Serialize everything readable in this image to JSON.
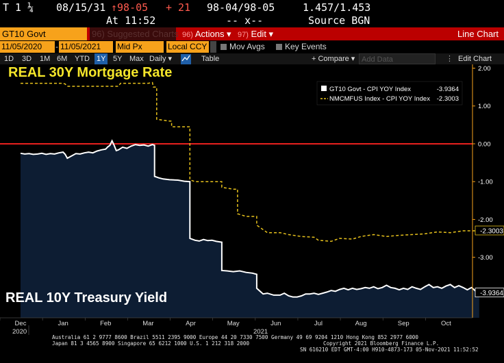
{
  "ticker": {
    "line1": {
      "code": "T 1 ¼",
      "maturity": "08/15/31",
      "price": "↑98-05",
      "change": "+ 21",
      "bid_ask": "98-04/98-05",
      "yields": "1.457/1.453"
    },
    "line2": {
      "time": "At 11:52",
      "dashes": "-- x--",
      "source": "Source BGN"
    }
  },
  "toolbar": {
    "security": "GT10 Govt",
    "suggested_num": "96)",
    "suggested_label": "Suggested Charts",
    "actions_num": "96)",
    "actions_label": "Actions ▾",
    "edit_num": "97)",
    "edit_label": "Edit ▾",
    "chart_type": "Line Chart"
  },
  "options": {
    "start_date": "11/05/2020",
    "end_date": "11/05/2021",
    "price_field": "Mid Px",
    "currency": "Local CCY",
    "mov_avgs": "Mov Avgs",
    "key_events": "Key Events"
  },
  "ranges": {
    "items": [
      "1D",
      "3D",
      "1M",
      "6M",
      "YTD",
      "1Y",
      "5Y",
      "Max"
    ],
    "active": "1Y",
    "frequency": "Daily ▾",
    "table": "Table",
    "compare": "+ Compare ▾",
    "add_data_placeholder": "Add Data",
    "edit_chart": "Edit Chart"
  },
  "colors": {
    "background": "#000000",
    "bloomberg_amber": "#f7a21b",
    "zero_line": "#e8201e",
    "area_fill": "#0d1d33",
    "series_white": "#ffffff",
    "series_yellow": "#e8c21c"
  },
  "chart_data": {
    "type": "line",
    "annotations": {
      "top": "REAL 30Y Mortgage Rate",
      "bottom": "REAL 10Y Treasury Yield"
    },
    "x_labels": [
      "Dec",
      "Jan",
      "Feb",
      "Mar",
      "Apr",
      "May",
      "Jun",
      "Jul",
      "Aug",
      "Sep",
      "Oct"
    ],
    "year_labels": [
      "2020",
      "2021"
    ],
    "ylim": [
      -4.6,
      2.1
    ],
    "y_ticks": [
      2.0,
      1.0,
      0.0,
      -1.0,
      -2.0,
      -3.0
    ],
    "y_tick_labels": [
      "2.00",
      "1.00",
      "0.00",
      "-1.00",
      "-2.00",
      "-3.00"
    ],
    "reference_line": 0,
    "series": [
      {
        "name": "GT10 Govt - CPI YOY Index",
        "legend_value": "-3.9364",
        "last_label": "-3.9364",
        "style": "solid-area",
        "points": [
          [
            0,
            -0.25
          ],
          [
            0.1,
            -0.27
          ],
          [
            0.2,
            -0.26
          ],
          [
            0.3,
            -0.28
          ],
          [
            0.4,
            -0.27
          ],
          [
            0.5,
            -0.25
          ],
          [
            0.6,
            -0.28
          ],
          [
            0.7,
            -0.26
          ],
          [
            0.8,
            -0.27
          ],
          [
            0.9,
            -0.24
          ],
          [
            1.0,
            -0.22
          ],
          [
            1.05,
            -0.28
          ],
          [
            1.1,
            -0.38
          ],
          [
            1.2,
            -0.32
          ],
          [
            1.3,
            -0.26
          ],
          [
            1.4,
            -0.27
          ],
          [
            1.5,
            -0.24
          ],
          [
            1.6,
            -0.22
          ],
          [
            1.7,
            -0.24
          ],
          [
            1.8,
            -0.19
          ],
          [
            1.9,
            -0.16
          ],
          [
            2.0,
            -0.14
          ],
          [
            2.05,
            -0.08
          ],
          [
            2.1,
            -0.04
          ],
          [
            2.15,
            0.08
          ],
          [
            2.2,
            -0.04
          ],
          [
            2.25,
            -0.18
          ],
          [
            2.3,
            -0.16
          ],
          [
            2.4,
            -0.09
          ],
          [
            2.5,
            -0.12
          ],
          [
            2.6,
            -0.06
          ],
          [
            2.7,
            -0.02
          ],
          [
            2.8,
            -0.04
          ],
          [
            2.9,
            -0.03
          ],
          [
            3.0,
            -0.06
          ],
          [
            3.1,
            -0.02
          ],
          [
            3.15,
            -0.04
          ],
          [
            3.15,
            -0.86
          ],
          [
            3.25,
            -0.9
          ],
          [
            3.35,
            -0.93
          ],
          [
            3.5,
            -0.95
          ],
          [
            3.7,
            -0.96
          ],
          [
            3.85,
            -0.99
          ],
          [
            3.98,
            -1.0
          ],
          [
            3.98,
            -2.5
          ],
          [
            4.1,
            -2.55
          ],
          [
            4.2,
            -2.57
          ],
          [
            4.3,
            -2.53
          ],
          [
            4.4,
            -2.56
          ],
          [
            4.5,
            -2.55
          ],
          [
            4.6,
            -2.58
          ],
          [
            4.73,
            -2.6
          ],
          [
            4.73,
            -3.35
          ],
          [
            4.85,
            -3.36
          ],
          [
            5.0,
            -3.38
          ],
          [
            5.15,
            -3.36
          ],
          [
            5.3,
            -3.4
          ],
          [
            5.45,
            -3.42
          ],
          [
            5.55,
            -3.45
          ],
          [
            5.55,
            -3.82
          ],
          [
            5.7,
            -3.97
          ],
          [
            5.8,
            -3.95
          ],
          [
            5.95,
            -4.0
          ],
          [
            6.1,
            -4.0
          ],
          [
            6.2,
            -3.95
          ],
          [
            6.3,
            -4.02
          ],
          [
            6.4,
            -4.05
          ],
          [
            6.5,
            -4.05
          ],
          [
            6.6,
            -4.02
          ],
          [
            6.7,
            -3.97
          ],
          [
            6.8,
            -3.97
          ],
          [
            6.9,
            -3.95
          ],
          [
            7.0,
            -3.98
          ],
          [
            7.1,
            -3.95
          ],
          [
            7.2,
            -3.92
          ],
          [
            7.3,
            -3.88
          ],
          [
            7.4,
            -3.9
          ],
          [
            7.5,
            -3.85
          ],
          [
            7.6,
            -3.82
          ],
          [
            7.7,
            -3.86
          ],
          [
            7.8,
            -3.82
          ],
          [
            7.9,
            -3.85
          ],
          [
            8.0,
            -3.83
          ],
          [
            8.1,
            -3.8
          ],
          [
            8.2,
            -3.82
          ],
          [
            8.3,
            -3.78
          ],
          [
            8.4,
            -3.83
          ],
          [
            8.5,
            -3.8
          ],
          [
            8.6,
            -3.74
          ],
          [
            8.7,
            -3.8
          ],
          [
            8.8,
            -3.82
          ],
          [
            8.9,
            -3.86
          ],
          [
            9.0,
            -3.82
          ],
          [
            9.1,
            -3.85
          ],
          [
            9.2,
            -3.78
          ],
          [
            9.3,
            -3.82
          ],
          [
            9.4,
            -3.85
          ],
          [
            9.5,
            -3.78
          ],
          [
            9.6,
            -3.72
          ],
          [
            9.7,
            -3.8
          ],
          [
            9.8,
            -3.78
          ],
          [
            9.9,
            -3.82
          ],
          [
            10.0,
            -3.76
          ],
          [
            10.1,
            -3.72
          ],
          [
            10.2,
            -3.8
          ],
          [
            10.3,
            -3.75
          ],
          [
            10.4,
            -3.8
          ],
          [
            10.5,
            -3.86
          ],
          [
            10.6,
            -3.8
          ],
          [
            10.7,
            -3.9
          ],
          [
            10.78,
            -3.94
          ]
        ]
      },
      {
        "name": "NMCMFUS Index - CPI YOY Index",
        "legend_value": "-2.3003",
        "last_label": "-2.3003",
        "style": "dashed",
        "points": [
          [
            0,
            1.6
          ],
          [
            1.0,
            1.6
          ],
          [
            1.05,
            1.58
          ],
          [
            1.1,
            1.52
          ],
          [
            2.3,
            1.52
          ],
          [
            2.35,
            1.6
          ],
          [
            3.0,
            1.6
          ],
          [
            3.1,
            1.62
          ],
          [
            3.12,
            1.5
          ],
          [
            3.2,
            1.5
          ],
          [
            3.2,
            0.65
          ],
          [
            3.5,
            0.6
          ],
          [
            3.55,
            0.6
          ],
          [
            3.55,
            0.45
          ],
          [
            3.98,
            0.45
          ],
          [
            3.98,
            -0.95
          ],
          [
            4.1,
            -1.0
          ],
          [
            4.73,
            -1.0
          ],
          [
            4.73,
            -1.15
          ],
          [
            5.0,
            -1.2
          ],
          [
            5.1,
            -1.2
          ],
          [
            5.1,
            -1.85
          ],
          [
            5.3,
            -1.92
          ],
          [
            5.55,
            -1.92
          ],
          [
            5.55,
            -2.15
          ],
          [
            5.8,
            -2.35
          ],
          [
            6.1,
            -2.35
          ],
          [
            6.3,
            -2.4
          ],
          [
            6.6,
            -2.45
          ],
          [
            6.9,
            -2.47
          ],
          [
            7.0,
            -2.55
          ],
          [
            7.3,
            -2.58
          ],
          [
            7.5,
            -2.5
          ],
          [
            7.8,
            -2.52
          ],
          [
            8.0,
            -2.45
          ],
          [
            8.3,
            -2.4
          ],
          [
            8.6,
            -2.45
          ],
          [
            8.9,
            -2.42
          ],
          [
            9.2,
            -2.4
          ],
          [
            9.5,
            -2.38
          ],
          [
            9.8,
            -2.33
          ],
          [
            10.1,
            -2.35
          ],
          [
            10.4,
            -2.3
          ],
          [
            10.78,
            -2.3
          ]
        ]
      }
    ]
  },
  "footer": {
    "line1": "Australia 61 2 9777 8600 Brazil 5511 2395 9000 Europe 44 20 7330 7500 Germany 49 69 9204 1210 Hong Kong 852 2977 6000",
    "line2_left": "Japan 81 3 4565 8900       Singapore 65 6212 1000      U.S. 1 212 318 2000",
    "line2_right": "Copyright 2021 Bloomberg Finance L.P.",
    "line3": "SN 616210 EDT  GMT-4:00 H910-4873-173 05-Nov-2021 11:52:52"
  }
}
